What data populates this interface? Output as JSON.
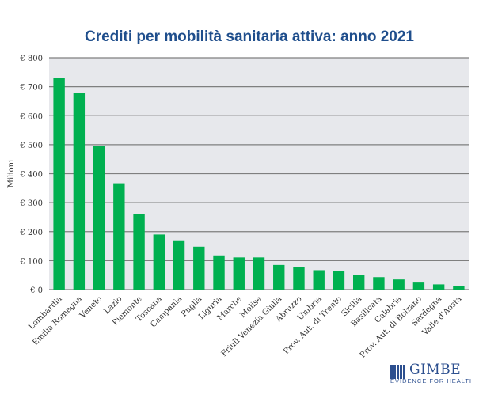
{
  "chart_data": {
    "type": "bar",
    "title": "Crediti per mobilità sanitaria attiva: anno 2021",
    "ylabel": "Milioni",
    "xlabel": "",
    "ylim": [
      0,
      800
    ],
    "yticks": [
      "€ 0",
      "€ 100",
      "€ 200",
      "€ 300",
      "€ 400",
      "€ 500",
      "€ 600",
      "€ 700",
      "€ 800"
    ],
    "grid": true,
    "bar_color": "#00b050",
    "plot_bg": "#e7e8ec",
    "categories": [
      "Lombardia",
      "Emilia Romagna",
      "Veneto",
      "Lazio",
      "Piemonte",
      "Toscana",
      "Campania",
      "Puglia",
      "Liguria",
      "Marche",
      "Molise",
      "Friuli Venezia Giulia",
      "Abruzzo",
      "Umbria",
      "Prov. Aut. di Trento",
      "Sicilia",
      "Basilicata",
      "Calabria",
      "Prov. Aut. di Bolzano",
      "Sardegna",
      "Valle d'Aosta"
    ],
    "values": [
      730,
      678,
      496,
      367,
      262,
      190,
      170,
      148,
      118,
      111,
      111,
      85,
      79,
      67,
      64,
      50,
      43,
      35,
      27,
      18,
      11
    ]
  },
  "logo": {
    "name": "GIMBE",
    "tagline": "EVIDENCE FOR HEALTH"
  }
}
